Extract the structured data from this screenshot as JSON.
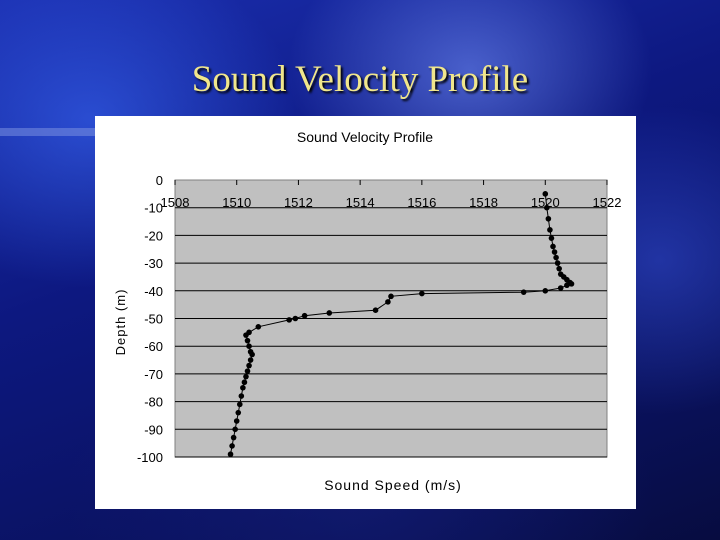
{
  "slide": {
    "title": "Sound Velocity Profile"
  },
  "chart_data": {
    "type": "scatter",
    "title": "Sound Velocity Profile",
    "xlabel": "Sound Speed (m/s)",
    "ylabel": "Depth (m)",
    "xlim": [
      1508,
      1522
    ],
    "ylim": [
      -100,
      0
    ],
    "xticks": [
      1508,
      1510,
      1512,
      1514,
      1516,
      1518,
      1520,
      1522
    ],
    "yticks": [
      0,
      -10,
      -20,
      -30,
      -40,
      -50,
      -60,
      -70,
      -80,
      -90,
      -100
    ],
    "grid": "horizontal",
    "plot_background": "#c0c0c0",
    "marker_color": "#000000",
    "series": [
      {
        "x": [
          1520.0,
          1520.05,
          1520.1,
          1520.15,
          1520.2,
          1520.25,
          1520.3,
          1520.35,
          1520.4,
          1520.45,
          1520.5,
          1520.6,
          1520.7,
          1520.8,
          1520.85,
          1520.7,
          1520.5,
          1520.0,
          1519.3,
          1516.0,
          1515.0,
          1514.9,
          1514.5,
          1513.0,
          1512.2,
          1511.9,
          1511.7,
          1510.7,
          1510.4,
          1510.3,
          1510.35,
          1510.4,
          1510.45,
          1510.5,
          1510.45,
          1510.4,
          1510.35,
          1510.3,
          1510.25,
          1510.2,
          1510.15,
          1510.1,
          1510.05,
          1510.0,
          1509.95,
          1509.9,
          1509.85,
          1509.8
        ],
        "y": [
          -5,
          -10,
          -14,
          -18,
          -21,
          -24,
          -26,
          -28,
          -30,
          -32,
          -34,
          -35,
          -36,
          -37,
          -37.5,
          -38,
          -39,
          -40,
          -40.5,
          -41,
          -42,
          -44,
          -47,
          -48,
          -49,
          -50,
          -50.5,
          -53,
          -55,
          -56,
          -58,
          -60,
          -62,
          -63,
          -65,
          -67,
          -69,
          -71,
          -73,
          -75,
          -78,
          -81,
          -84,
          -87,
          -90,
          -93,
          -96,
          -99
        ]
      }
    ]
  }
}
